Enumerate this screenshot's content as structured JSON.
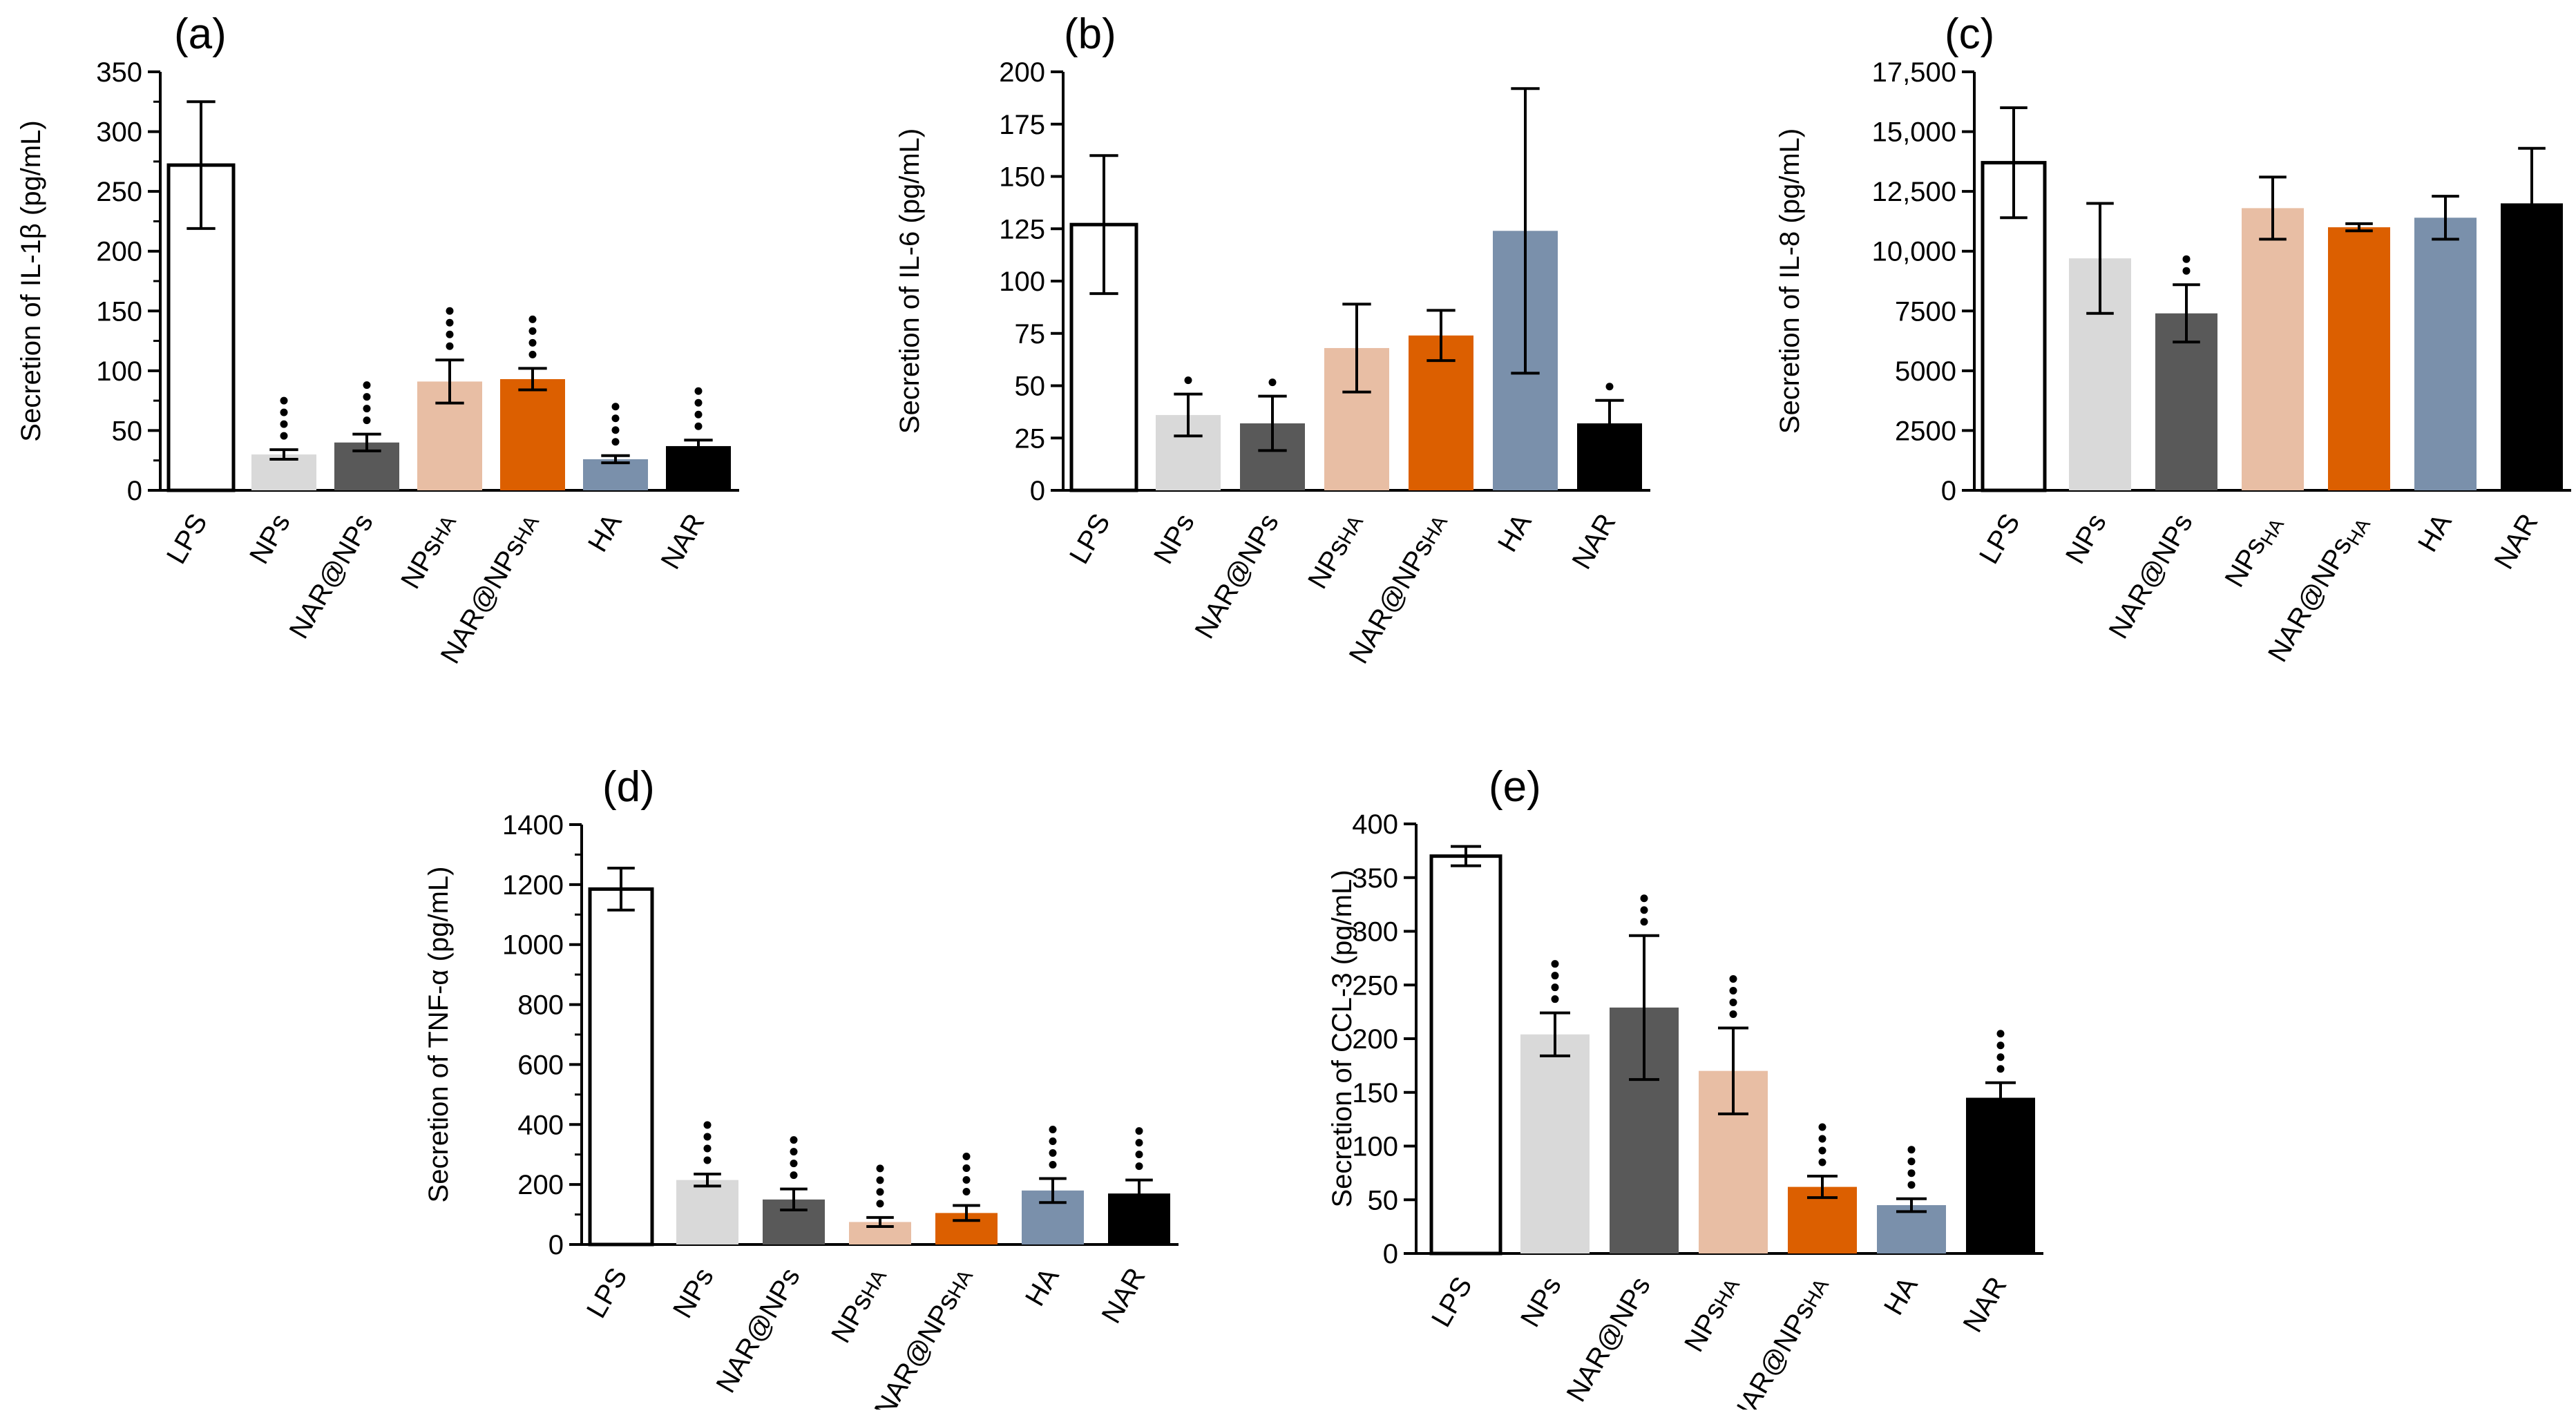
{
  "colors": {
    "LPS": "#ffffff",
    "NPs": "#d9d9d9",
    "NAR@NPs": "#595959",
    "NPsHA": "#e8bea4",
    "NAR@NPsHA": "#dc5f00",
    "HA": "#7a90ab",
    "NAR": "#000000"
  },
  "chart_data": [
    {
      "type": "bar",
      "panel_label": "(a)",
      "ylabel": "Secretion of IL-1β (pg/mL)",
      "ylim": [
        0,
        350
      ],
      "yticks": [
        "0",
        "50",
        "100",
        "150",
        "200",
        "250",
        "300",
        "350"
      ],
      "ytick_values": [
        0,
        50,
        100,
        150,
        200,
        250,
        300,
        350
      ],
      "minor_ticks": true,
      "categories": [
        {
          "key": "LPS",
          "base": "LPS",
          "sub": "",
          "sub_style": "none"
        },
        {
          "key": "NPs",
          "base": "NPs",
          "sub": "",
          "sub_style": "none"
        },
        {
          "key": "NAR@NPs",
          "base": "NAR@NPs",
          "sub": "",
          "sub_style": "none"
        },
        {
          "key": "NPsHA",
          "base": "NPs",
          "sub": "HA",
          "sub_style": "inline"
        },
        {
          "key": "NAR@NPsHA",
          "base": "NAR@NPs",
          "sub": "HA",
          "sub_style": "inline"
        },
        {
          "key": "HA",
          "base": "HA",
          "sub": "",
          "sub_style": "none"
        },
        {
          "key": "NAR",
          "base": "NAR",
          "sub": "",
          "sub_style": "none"
        }
      ],
      "values": [
        272,
        30,
        40,
        91,
        93,
        26,
        37
      ],
      "errors": [
        53,
        4,
        7,
        18,
        9,
        3,
        5
      ],
      "significance_dots": [
        0,
        4,
        4,
        4,
        4,
        4,
        4
      ]
    },
    {
      "type": "bar",
      "panel_label": "(b)",
      "ylabel": "Secretion of IL-6 (pg/mL)",
      "ylim": [
        0,
        200
      ],
      "yticks": [
        "0",
        "25",
        "50",
        "75",
        "100",
        "125",
        "150",
        "175",
        "200"
      ],
      "ytick_values": [
        0,
        25,
        50,
        75,
        100,
        125,
        150,
        175,
        200
      ],
      "minor_ticks": false,
      "categories": [
        {
          "key": "LPS",
          "base": "LPS",
          "sub": "",
          "sub_style": "none"
        },
        {
          "key": "NPs",
          "base": "NPs",
          "sub": "",
          "sub_style": "none"
        },
        {
          "key": "NAR@NPs",
          "base": "NAR@NPs",
          "sub": "",
          "sub_style": "none"
        },
        {
          "key": "NPsHA",
          "base": "NPs",
          "sub": "HA",
          "sub_style": "inline"
        },
        {
          "key": "NAR@NPsHA",
          "base": "NAR@NPs",
          "sub": "HA",
          "sub_style": "inline"
        },
        {
          "key": "HA",
          "base": "HA",
          "sub": "",
          "sub_style": "none"
        },
        {
          "key": "NAR",
          "base": "NAR",
          "sub": "",
          "sub_style": "none"
        }
      ],
      "values": [
        127,
        36,
        32,
        68,
        74,
        124,
        32
      ],
      "errors": [
        33,
        10,
        13,
        21,
        12,
        68,
        11
      ],
      "significance_dots": [
        0,
        1,
        1,
        0,
        0,
        0,
        1
      ]
    },
    {
      "type": "bar",
      "panel_label": "(c)",
      "ylabel": "Secretion of IL-8 (pg/mL)",
      "ylim": [
        0,
        17500
      ],
      "yticks": [
        "0",
        "2500",
        "5000",
        "7500",
        "10,000",
        "12,500",
        "15,000",
        "17,500"
      ],
      "ytick_values": [
        0,
        2500,
        5000,
        7500,
        10000,
        12500,
        15000,
        17500
      ],
      "minor_ticks": false,
      "categories": [
        {
          "key": "LPS",
          "base": "LPS",
          "sub": "",
          "sub_style": "none"
        },
        {
          "key": "NPs",
          "base": "NPs",
          "sub": "",
          "sub_style": "none"
        },
        {
          "key": "NAR@NPs",
          "base": "NAR@NPs",
          "sub": "",
          "sub_style": "none"
        },
        {
          "key": "NPsHA",
          "base": "NPs",
          "sub": "HA",
          "sub_style": "sub"
        },
        {
          "key": "NAR@NPsHA",
          "base": "NAR@NPs",
          "sub": "HA",
          "sub_style": "sub"
        },
        {
          "key": "HA",
          "base": "HA",
          "sub": "",
          "sub_style": "none"
        },
        {
          "key": "NAR",
          "base": "NAR",
          "sub": "",
          "sub_style": "none"
        }
      ],
      "values": [
        13700,
        9700,
        7400,
        11800,
        11000,
        11400,
        12000
      ],
      "errors": [
        2300,
        2300,
        1200,
        1300,
        150,
        900,
        2300
      ],
      "significance_dots": [
        0,
        0,
        2,
        0,
        0,
        0,
        0
      ]
    },
    {
      "type": "bar",
      "panel_label": "(d)",
      "ylabel": "Secretion of TNF-α (pg/mL)",
      "ylim": [
        0,
        1400
      ],
      "yticks": [
        "0",
        "200",
        "400",
        "600",
        "800",
        "1000",
        "1200",
        "1400"
      ],
      "ytick_values": [
        0,
        200,
        400,
        600,
        800,
        1000,
        1200,
        1400
      ],
      "minor_ticks": true,
      "categories": [
        {
          "key": "LPS",
          "base": "LPS",
          "sub": "",
          "sub_style": "none"
        },
        {
          "key": "NPs",
          "base": "NPs",
          "sub": "",
          "sub_style": "none"
        },
        {
          "key": "NAR@NPs",
          "base": "NAR@NPs",
          "sub": "",
          "sub_style": "none"
        },
        {
          "key": "NPsHA",
          "base": "NPs",
          "sub": "HA",
          "sub_style": "inline"
        },
        {
          "key": "NAR@NPsHA",
          "base": "NAR@NPs",
          "sub": "HA",
          "sub_style": "inline"
        },
        {
          "key": "HA",
          "base": "HA",
          "sub": "",
          "sub_style": "none"
        },
        {
          "key": "NAR",
          "base": "NAR",
          "sub": "",
          "sub_style": "none"
        }
      ],
      "values": [
        1185,
        215,
        150,
        75,
        105,
        180,
        170
      ],
      "errors": [
        70,
        20,
        35,
        15,
        25,
        40,
        45
      ],
      "significance_dots": [
        0,
        4,
        4,
        4,
        4,
        4,
        4
      ]
    },
    {
      "type": "bar",
      "panel_label": "(e)",
      "ylabel": "Secretion of CCL-3 (pg/mL)",
      "ylim": [
        0,
        400
      ],
      "yticks": [
        "0",
        "50",
        "100",
        "150",
        "200",
        "250",
        "300",
        "350",
        "400"
      ],
      "ytick_values": [
        0,
        50,
        100,
        150,
        200,
        250,
        300,
        350,
        400
      ],
      "minor_ticks": false,
      "categories": [
        {
          "key": "LPS",
          "base": "LPS",
          "sub": "",
          "sub_style": "none"
        },
        {
          "key": "NPs",
          "base": "NPs",
          "sub": "",
          "sub_style": "none"
        },
        {
          "key": "NAR@NPs",
          "base": "NAR@NPs",
          "sub": "",
          "sub_style": "none"
        },
        {
          "key": "NPsHA",
          "base": "NPs",
          "sub": "HA",
          "sub_style": "inline"
        },
        {
          "key": "NAR@NPsHA",
          "base": "NAR@NPs",
          "sub": "HA",
          "sub_style": "inline"
        },
        {
          "key": "HA",
          "base": "HA",
          "sub": "",
          "sub_style": "none"
        },
        {
          "key": "NAR",
          "base": "NAR",
          "sub": "",
          "sub_style": "none"
        }
      ],
      "values": [
        370,
        204,
        229,
        170,
        62,
        45,
        145
      ],
      "errors": [
        9,
        20,
        67,
        40,
        10,
        6,
        14
      ],
      "significance_dots": [
        0,
        4,
        3,
        4,
        4,
        4,
        4
      ]
    }
  ]
}
